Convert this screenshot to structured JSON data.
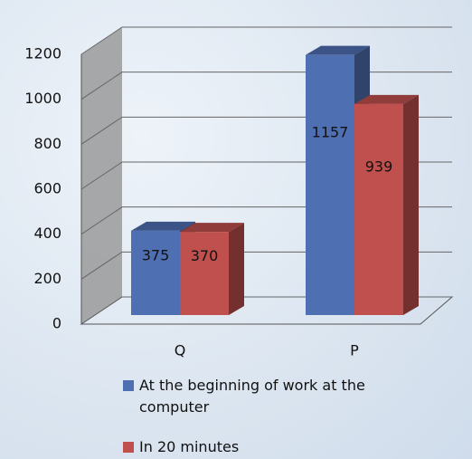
{
  "chart_data": {
    "type": "bar3d",
    "categories": [
      "Q",
      "P"
    ],
    "series": [
      {
        "name": "At the beginning of work at the computer",
        "color": "#4f6fb3",
        "values": [
          375,
          1157
        ]
      },
      {
        "name": "In 20 minutes",
        "color": "#c0504d",
        "values": [
          370,
          939
        ]
      }
    ],
    "ylim": [
      0,
      1200
    ],
    "yticks": [
      0,
      200,
      400,
      600,
      800,
      1000,
      1200
    ],
    "grid": true,
    "data_labels": true
  }
}
